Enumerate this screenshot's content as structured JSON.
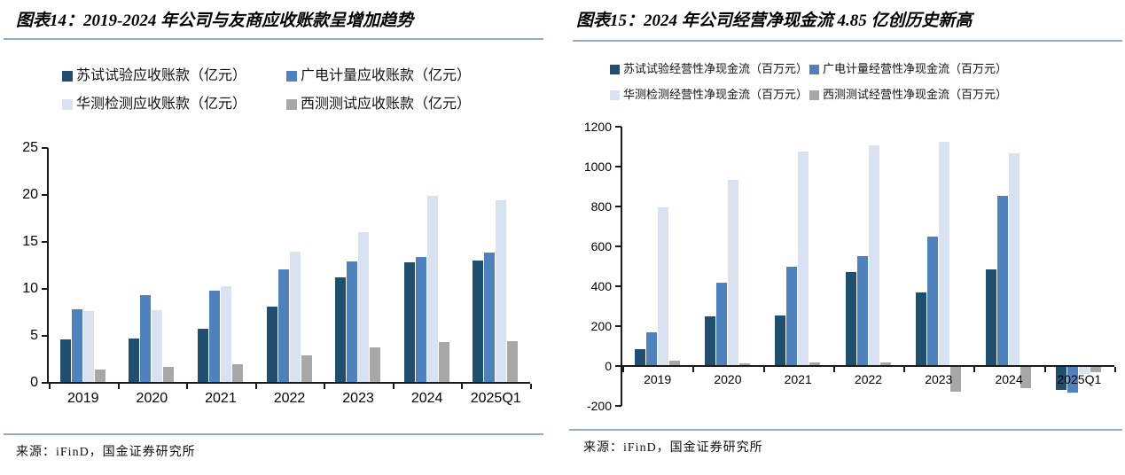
{
  "colors": {
    "series_palette": [
      "#1F4E6E",
      "#4F81BD",
      "#D9E2F0",
      "#A7A7A7"
    ],
    "divider_blue": "#93ABC6",
    "axis_black": "#1a1a1a",
    "text_black": "#000000"
  },
  "chart_data": [
    {
      "type": "bar",
      "title": "图表14：2019-2024 年公司与友商应收账款呈增加趋势",
      "source": "来源：iFinD，国金证券研究所",
      "categories": [
        "2019",
        "2020",
        "2021",
        "2022",
        "2023",
        "2024",
        "2025Q1"
      ],
      "series": [
        {
          "name": "苏试试验应收账款（亿元）",
          "color": "#1F4E6E",
          "values": [
            4.6,
            4.7,
            5.8,
            8.1,
            11.2,
            12.8,
            13.0
          ]
        },
        {
          "name": "广电计量应收账款（亿元）",
          "color": "#4F81BD",
          "values": [
            7.8,
            9.3,
            9.8,
            12.1,
            12.9,
            13.4,
            13.9
          ]
        },
        {
          "name": "华测检测应收账款（亿元）",
          "color": "#D9E2F0",
          "values": [
            7.6,
            7.7,
            10.3,
            14.0,
            16.0,
            19.9,
            19.4
          ]
        },
        {
          "name": "西测测试应收账款（亿元）",
          "color": "#A7A7A7",
          "values": [
            1.4,
            1.7,
            2.0,
            2.9,
            3.8,
            4.3,
            4.4
          ]
        }
      ],
      "ylim": [
        0,
        25
      ],
      "yticks": [
        0,
        5,
        10,
        15,
        20,
        25
      ],
      "grid": false,
      "legend_position": "top"
    },
    {
      "type": "bar",
      "title": "图表15：2024 年公司经营净现金流 4.85 亿创历史新高",
      "source": "来源：iFinD，国金证券研究所",
      "categories": [
        "2019",
        "2020",
        "2021",
        "2022",
        "2023",
        "2024",
        "2025Q1"
      ],
      "series": [
        {
          "name": "苏试试验经营性净现金流（百万元）",
          "color": "#1F4E6E",
          "values": [
            85,
            250,
            253,
            470,
            370,
            485,
            -120
          ]
        },
        {
          "name": "广电计量经营性净现金流（百万元）",
          "color": "#4F81BD",
          "values": [
            170,
            420,
            500,
            550,
            648,
            855,
            -135
          ]
        },
        {
          "name": "华测检测经营性净现金流（百万元）",
          "color": "#D9E2F0",
          "values": [
            795,
            935,
            1075,
            1105,
            1125,
            1065,
            -40
          ]
        },
        {
          "name": "西测测试经营性净现金流（百万元）",
          "color": "#A7A7A7",
          "values": [
            25,
            12,
            20,
            18,
            -130,
            -110,
            -30
          ]
        }
      ],
      "ylim": [
        -200,
        1200
      ],
      "yticks": [
        -200,
        0,
        200,
        400,
        600,
        800,
        1000,
        1200
      ],
      "grid": false,
      "legend_position": "top"
    }
  ]
}
